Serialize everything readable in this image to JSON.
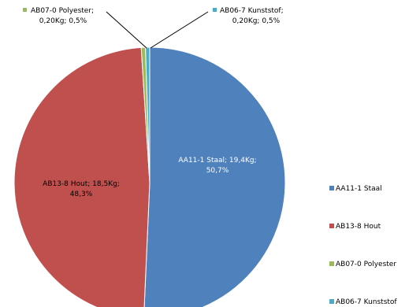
{
  "chart_data": {
    "type": "pie",
    "slices": [
      {
        "name": "AA11-1 Staal",
        "weight": "19,4Kg",
        "percent_label": "50,7%",
        "value": 50.7,
        "color": "#4F81BD"
      },
      {
        "name": "AB13-8 Hout",
        "weight": "18,5Kg",
        "percent_label": "48,3%",
        "value": 48.3,
        "color": "#C0504D"
      },
      {
        "name": "AB07-0 Polyester",
        "weight": "0,20Kg",
        "percent_label": "0,5%",
        "value": 0.5,
        "color": "#9BBB59"
      },
      {
        "name": "AB06-7 Kunststof",
        "weight": "0,20Kg",
        "percent_label": "0,5%",
        "value": 0.5,
        "color": "#4BACC6"
      }
    ],
    "data_labels": [
      {
        "line1": "AA11-1 Staal; 19,4Kg;",
        "line2": "50,7%"
      },
      {
        "line1": "AB13-8 Hout; 18,5Kg;",
        "line2": "48,3%"
      },
      {
        "line1": "AB07-0 Polyester;",
        "line2": "0,20Kg; 0,5%"
      },
      {
        "line1": "AB06-7 Kunststof;",
        "line2": "0,20Kg; 0,5%"
      }
    ],
    "legend": [
      "AA11-1 Staal",
      "AB13-8 Hout",
      "AB07-0 Polyester",
      "AB06-7 Kunststof"
    ],
    "legend_position": "right"
  }
}
